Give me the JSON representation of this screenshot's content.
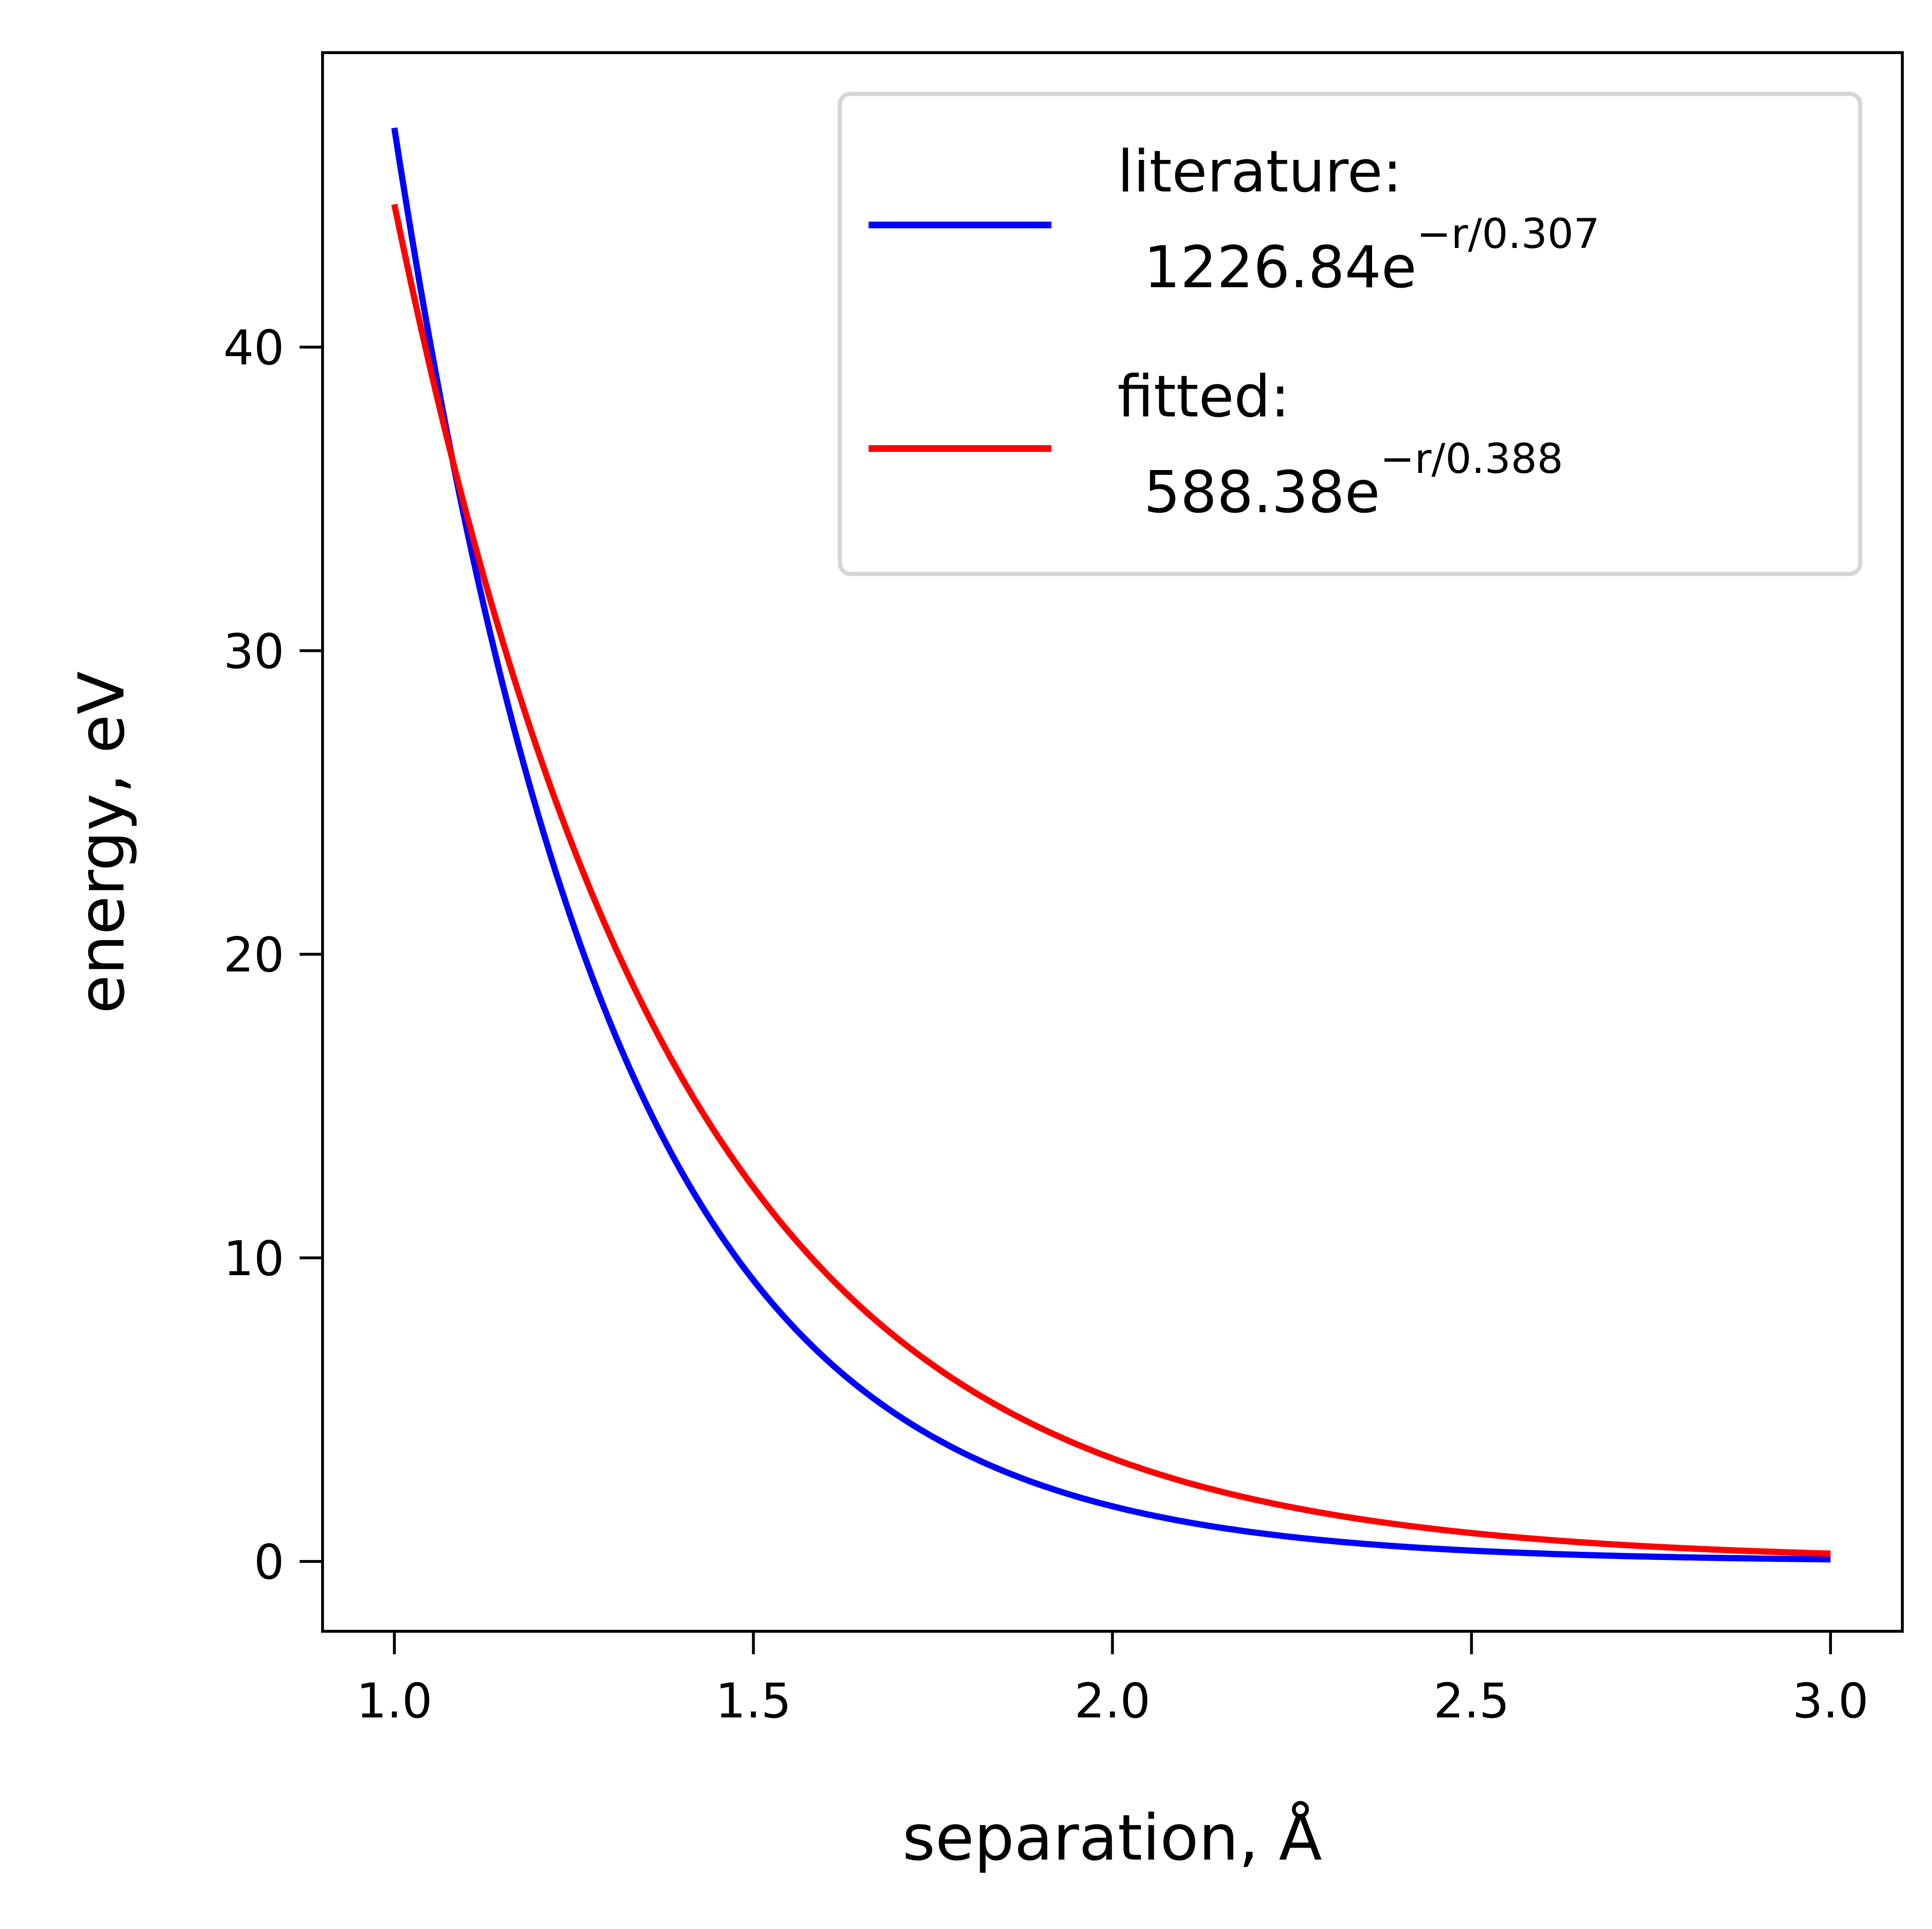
{
  "chart_data": {
    "type": "line",
    "xlabel": "separation, Å",
    "ylabel": "energy, eV",
    "xlim": [
      0.9,
      3.1
    ],
    "ylim": [
      -2.3,
      49.7
    ],
    "xticks": [
      1.0,
      1.5,
      2.0,
      2.5,
      3.0
    ],
    "xtick_labels": [
      "1.0",
      "1.5",
      "2.0",
      "2.5",
      "3.0"
    ],
    "yticks": [
      0,
      10,
      20,
      30,
      40
    ],
    "ytick_labels": [
      "0",
      "10",
      "20",
      "30",
      "40"
    ],
    "grid": false,
    "legend_position": "top-right",
    "series": [
      {
        "name_line1": "literature:",
        "name_line2": "1226.84e",
        "name_exponent": "−r/0.307",
        "color": "#0000ff",
        "A": 1226.84,
        "rho": 0.307,
        "x": [
          1.0,
          1.1,
          1.2,
          1.3,
          1.4,
          1.5,
          1.6,
          1.7,
          1.8,
          1.9,
          2.0,
          2.2,
          2.4,
          2.6,
          2.8,
          3.0
        ],
        "y": [
          47.1,
          34.1,
          24.7,
          17.8,
          12.9,
          9.34,
          6.76,
          4.89,
          3.54,
          2.56,
          1.85,
          0.969,
          0.507,
          0.265,
          0.139,
          0.073
        ]
      },
      {
        "name_line1": "fitted:",
        "name_line2": "588.38e",
        "name_exponent": "−r/0.388",
        "color": "#ff0000",
        "A": 588.38,
        "rho": 0.388,
        "x": [
          1.0,
          1.1,
          1.2,
          1.3,
          1.4,
          1.5,
          1.6,
          1.7,
          1.8,
          1.9,
          2.0,
          2.2,
          2.4,
          2.6,
          2.8,
          3.0
        ],
        "y": [
          44.9,
          34.5,
          26.6,
          20.5,
          15.8,
          12.2,
          9.36,
          7.2,
          5.55,
          4.27,
          3.29,
          1.95,
          1.16,
          0.69,
          0.41,
          0.24
        ]
      }
    ]
  }
}
